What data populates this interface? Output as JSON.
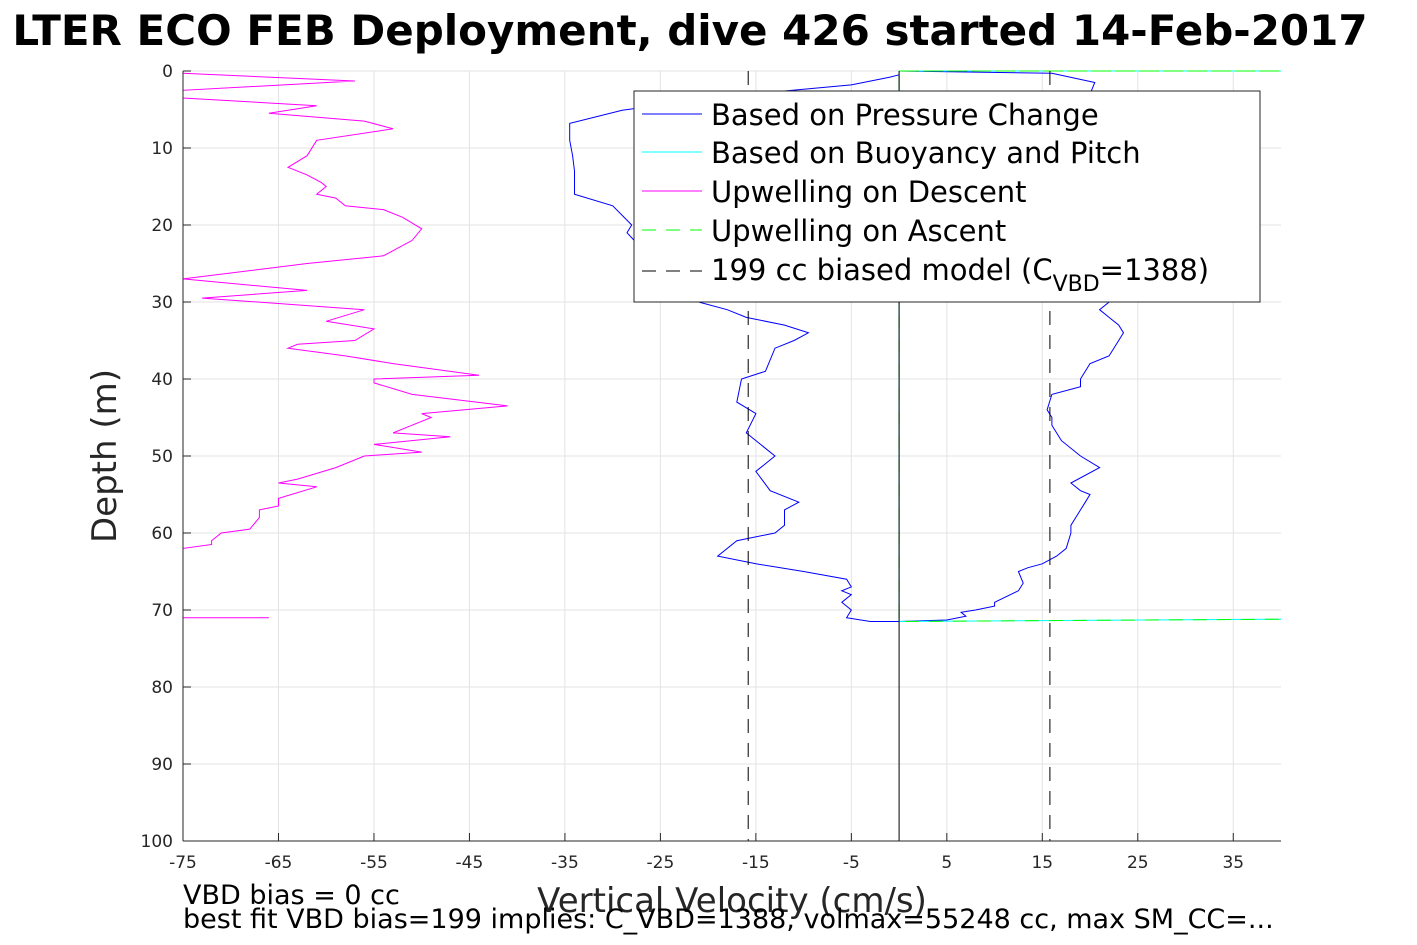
{
  "chart_data": {
    "type": "line",
    "title": "LTER ECO FEB Deployment, dive 426 started 14-Feb-2017",
    "xlabel": "Vertical Velocity (cm/s)",
    "ylabel": "Depth (m)",
    "xlim": [
      -75,
      40
    ],
    "ylim": [
      0,
      100
    ],
    "y_reversed": true,
    "grid": true,
    "xticks": [
      "-75",
      "-65",
      "-55",
      "-45",
      "-35",
      "-25",
      "-15",
      "-5",
      "5",
      "15",
      "25",
      "35"
    ],
    "yticks": [
      "0",
      "10",
      "20",
      "30",
      "40",
      "50",
      "60",
      "70",
      "80",
      "90",
      "100"
    ],
    "legend_position": "top-right",
    "legend": {
      "pressure": "Based on Pressure Change",
      "buoyancy": "Based on Buoyancy and Pitch",
      "up_descent": "Upwelling on Descent",
      "up_ascent": "Upwelling on Ascent",
      "model_main": "199 cc biased model (C",
      "model_sub": "VBD",
      "model_tail": "=1388)"
    },
    "notes": {
      "bias": "VBD bias = 0 cc",
      "bestfit": "best fit VBD bias=199 implies: C_VBD=1388, volmax=55248 cc, max SM_CC=..."
    },
    "colors": {
      "pressure": "#0000ff",
      "buoyancy": "#00ffff",
      "up_descent": "#ff00ff",
      "up_ascent": "#00ff00",
      "model": "#000000"
    },
    "series": [
      {
        "key": "pressure_descent",
        "values": [
          [
            0,
            0.5
          ],
          [
            -1,
            0.8
          ],
          [
            -5,
            1.8
          ],
          [
            -12,
            2.6
          ],
          [
            -21,
            3.7
          ],
          [
            -29,
            5.1
          ],
          [
            -34.5,
            6.8
          ],
          [
            -34.5,
            9
          ],
          [
            -34.2,
            11
          ],
          [
            -34,
            13
          ],
          [
            -34,
            16
          ],
          [
            -30,
            17.5
          ],
          [
            -28,
            20
          ],
          [
            -28.5,
            21
          ],
          [
            -27,
            23
          ],
          [
            -24,
            25
          ],
          [
            -23,
            27
          ],
          [
            -25.5,
            29
          ],
          [
            -23,
            29.5
          ],
          [
            -21,
            30
          ],
          [
            -18,
            31
          ],
          [
            -16,
            32
          ],
          [
            -12,
            33
          ],
          [
            -9.5,
            34
          ],
          [
            -11,
            35
          ],
          [
            -13,
            36
          ],
          [
            -13.5,
            37.5
          ],
          [
            -14,
            39
          ],
          [
            -16.5,
            40
          ],
          [
            -17,
            43
          ],
          [
            -15,
            44.5
          ],
          [
            -16,
            47
          ],
          [
            -14,
            49
          ],
          [
            -13,
            50
          ],
          [
            -15,
            52
          ],
          [
            -13.5,
            54.5
          ],
          [
            -10.5,
            56
          ],
          [
            -12,
            57
          ],
          [
            -12,
            59
          ],
          [
            -13,
            60
          ],
          [
            -17,
            61
          ],
          [
            -19,
            63
          ],
          [
            -15,
            64
          ],
          [
            -10,
            65
          ],
          [
            -5.5,
            66
          ],
          [
            -5,
            67
          ],
          [
            -6,
            67.5
          ],
          [
            -5,
            68
          ],
          [
            -6,
            69
          ],
          [
            -5,
            70
          ],
          [
            -5.5,
            71
          ],
          [
            -3,
            71.5
          ],
          [
            0,
            71.5
          ]
        ]
      },
      {
        "key": "pressure_ascent",
        "values": [
          [
            0,
            71.5
          ],
          [
            5,
            71.3
          ],
          [
            7,
            70.8
          ],
          [
            6.5,
            70.3
          ],
          [
            8,
            70
          ],
          [
            10,
            69.5
          ],
          [
            10,
            69
          ],
          [
            12.5,
            67.5
          ],
          [
            13,
            66.5
          ],
          [
            12.5,
            65
          ],
          [
            13.5,
            64.5
          ],
          [
            15,
            64
          ],
          [
            16.5,
            63
          ],
          [
            17.5,
            62
          ],
          [
            18,
            60
          ],
          [
            18,
            59
          ],
          [
            18.5,
            58
          ],
          [
            19,
            57
          ],
          [
            19.5,
            56
          ],
          [
            20,
            55
          ],
          [
            19,
            54.5
          ],
          [
            18,
            53.5
          ],
          [
            21,
            51.5
          ],
          [
            19,
            50
          ],
          [
            17,
            48
          ],
          [
            16,
            46
          ],
          [
            16,
            45
          ],
          [
            15.5,
            44
          ],
          [
            16,
            42
          ],
          [
            19,
            41
          ],
          [
            19,
            40
          ],
          [
            20,
            38
          ],
          [
            22,
            37
          ],
          [
            23,
            35
          ],
          [
            23.5,
            34
          ],
          [
            23,
            33
          ],
          [
            22,
            32
          ],
          [
            21,
            31
          ],
          [
            22,
            30
          ],
          [
            22.5,
            29
          ],
          [
            22,
            27
          ],
          [
            21,
            25
          ],
          [
            20,
            22
          ],
          [
            19,
            20
          ],
          [
            19.5,
            18
          ],
          [
            20,
            15
          ],
          [
            19.5,
            12
          ],
          [
            19,
            8
          ],
          [
            19,
            6
          ],
          [
            18.5,
            5
          ],
          [
            20,
            3
          ],
          [
            20.5,
            1.5
          ],
          [
            16,
            0.3
          ],
          [
            0,
            0
          ]
        ]
      },
      {
        "key": "buoyancy",
        "values": [
          [
            0,
            0
          ],
          [
            40,
            0
          ],
          [
            0,
            0
          ],
          [
            0,
            71.5
          ],
          [
            40,
            71.2
          ]
        ]
      },
      {
        "key": "upwelling_ascent",
        "values": [
          [
            0,
            0
          ],
          [
            40,
            0
          ],
          [
            0,
            0
          ],
          [
            0,
            71.5
          ],
          [
            40,
            71.2
          ]
        ]
      },
      {
        "key": "upwelling_descent",
        "values": [
          [
            -75,
            0.3
          ],
          [
            -57,
            1.3
          ],
          [
            -75,
            2.5
          ],
          [
            -75,
            3.5
          ],
          [
            -61,
            4.5
          ],
          [
            -66,
            5.5
          ],
          [
            -56,
            6.5
          ],
          [
            -53,
            7.5
          ],
          [
            -61,
            9
          ],
          [
            -62,
            11
          ],
          [
            -64,
            12.5
          ],
          [
            -62,
            13.5
          ],
          [
            -60.5,
            14.5
          ],
          [
            -60,
            15
          ],
          [
            -61,
            16
          ],
          [
            -59,
            16.5
          ],
          [
            -58,
            17.5
          ],
          [
            -54,
            18
          ],
          [
            -52,
            19
          ],
          [
            -50,
            20.5
          ],
          [
            -51,
            22
          ],
          [
            -54,
            24
          ],
          [
            -62,
            25
          ],
          [
            -75,
            27
          ],
          [
            -62,
            28.5
          ],
          [
            -73,
            29.5
          ],
          [
            -56,
            31
          ],
          [
            -60,
            32.5
          ],
          [
            -55,
            33.5
          ],
          [
            -57,
            35
          ],
          [
            -63,
            35.5
          ],
          [
            -64,
            36
          ],
          [
            -58,
            37
          ],
          [
            -53,
            38
          ],
          [
            -44,
            39.5
          ],
          [
            -55,
            40
          ],
          [
            -55,
            40.5
          ],
          [
            -51,
            42
          ],
          [
            -41,
            43.5
          ],
          [
            -50,
            44.5
          ],
          [
            -49,
            45
          ],
          [
            -51,
            46
          ],
          [
            -53,
            47
          ],
          [
            -47,
            47.5
          ],
          [
            -55,
            48.5
          ],
          [
            -50,
            49.5
          ],
          [
            -56,
            50
          ],
          [
            -59,
            51.5
          ],
          [
            -63,
            53
          ],
          [
            -65,
            53.5
          ],
          [
            -61,
            54
          ],
          [
            -65,
            55.5
          ],
          [
            -65,
            56.5
          ],
          [
            -67,
            57
          ],
          [
            -67,
            58
          ],
          [
            -68,
            59.5
          ],
          [
            -71,
            60
          ],
          [
            -72,
            61
          ],
          [
            -72,
            61.5
          ],
          [
            -75,
            62
          ],
          [
            -75,
            71
          ],
          [
            -66,
            71
          ]
        ]
      },
      {
        "key": "model_left",
        "values": [
          [
            -15.8,
            0
          ],
          [
            -15.8,
            100
          ]
        ]
      },
      {
        "key": "model_right",
        "values": [
          [
            15.8,
            0
          ],
          [
            15.8,
            100
          ]
        ]
      }
    ]
  }
}
